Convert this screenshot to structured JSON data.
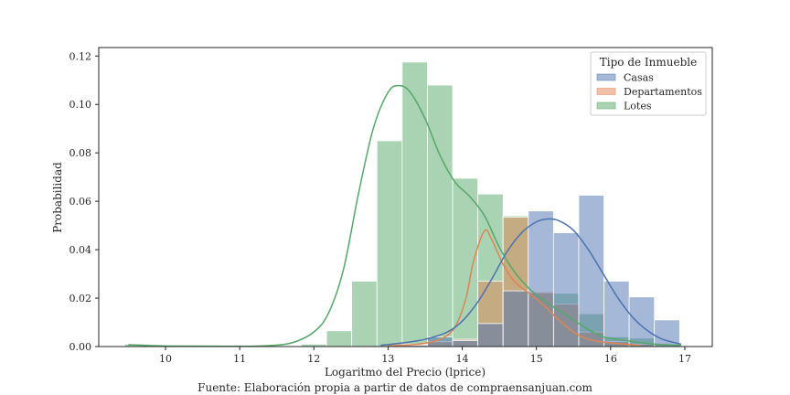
{
  "chart_data": {
    "type": "bar",
    "xlabel": "Logaritmo del Precio (lprice)",
    "ylabel": "Probabilidad",
    "caption": "Fuente: Elaboración propia a partir de datos de compraensanjuan.com",
    "xlim": [
      9.1,
      17.37
    ],
    "ylim": [
      0,
      0.1235
    ],
    "x_ticks": [
      10,
      11,
      12,
      13,
      14,
      15,
      16,
      17
    ],
    "y_ticks": [
      0.0,
      0.02,
      0.04,
      0.06,
      0.08,
      0.1,
      0.12
    ],
    "y_tick_labels": [
      "0.00",
      "0.02",
      "0.04",
      "0.06",
      "0.08",
      "0.10",
      "0.12"
    ],
    "legend": {
      "title": "Tipo de Inmueble",
      "placement": "top-right"
    },
    "bin_edges": [
      9.45,
      9.79,
      10.13,
      10.47,
      10.81,
      11.15,
      11.49,
      11.83,
      12.17,
      12.51,
      12.85,
      13.19,
      13.53,
      13.87,
      14.21,
      14.55,
      14.89,
      15.23,
      15.57,
      15.91,
      16.25,
      16.59,
      16.93
    ],
    "series": [
      {
        "name": "Lotes",
        "color": "#55a868",
        "values": [
          0.001,
          0,
          0,
          0,
          0,
          0,
          0,
          0.001,
          0.0065,
          0.027,
          0.085,
          0.1175,
          0.108,
          0.0695,
          0.063,
          0.054,
          0.022,
          0.022,
          0.0135,
          0.004,
          0.0035,
          0.001
        ],
        "kde": [
          [
            9.5,
            0.0008
          ],
          [
            9.8,
            0.0004
          ],
          [
            10.2,
            0.0002
          ],
          [
            11.0,
            0.0001
          ],
          [
            11.4,
            0.0004
          ],
          [
            11.7,
            0.0015
          ],
          [
            12.0,
            0.006
          ],
          [
            12.2,
            0.014
          ],
          [
            12.4,
            0.032
          ],
          [
            12.6,
            0.063
          ],
          [
            12.8,
            0.09
          ],
          [
            13.0,
            0.105
          ],
          [
            13.15,
            0.1078
          ],
          [
            13.3,
            0.105
          ],
          [
            13.5,
            0.094
          ],
          [
            13.7,
            0.079
          ],
          [
            13.9,
            0.068
          ],
          [
            14.1,
            0.062
          ],
          [
            14.3,
            0.054
          ],
          [
            14.5,
            0.041
          ],
          [
            14.7,
            0.031
          ],
          [
            14.9,
            0.024
          ],
          [
            15.1,
            0.019
          ],
          [
            15.3,
            0.015
          ],
          [
            15.5,
            0.011
          ],
          [
            15.7,
            0.007
          ],
          [
            15.9,
            0.004
          ],
          [
            16.1,
            0.003
          ],
          [
            16.3,
            0.002
          ],
          [
            16.6,
            0.001
          ],
          [
            16.95,
            0.0005
          ]
        ]
      },
      {
        "name": "Departamentos",
        "color": "#dd8452",
        "values": [
          0,
          0,
          0,
          0,
          0,
          0,
          0,
          0,
          0,
          0,
          0,
          0.001,
          0.002,
          0.003,
          0.027,
          0.0535,
          0.0225,
          0.0175,
          0.006,
          0.002,
          0.001,
          0
        ],
        "kde": [
          [
            13.0,
            0.0003
          ],
          [
            13.4,
            0.001
          ],
          [
            13.7,
            0.003
          ],
          [
            13.9,
            0.008
          ],
          [
            14.05,
            0.02
          ],
          [
            14.15,
            0.035
          ],
          [
            14.3,
            0.0478
          ],
          [
            14.4,
            0.044
          ],
          [
            14.55,
            0.034
          ],
          [
            14.7,
            0.027
          ],
          [
            14.9,
            0.022
          ],
          [
            15.1,
            0.017
          ],
          [
            15.3,
            0.011
          ],
          [
            15.5,
            0.006
          ],
          [
            15.7,
            0.003
          ],
          [
            16.0,
            0.0015
          ],
          [
            16.4,
            0.0005
          ]
        ]
      },
      {
        "name": "Casas",
        "color": "#4c72b0",
        "values": [
          0,
          0,
          0,
          0,
          0,
          0,
          0,
          0,
          0,
          0,
          0,
          0.0005,
          0.004,
          0.0025,
          0.0095,
          0.023,
          0.056,
          0.047,
          0.0625,
          0.027,
          0.0205,
          0.011
        ],
        "kde": [
          [
            12.9,
            0.0005
          ],
          [
            13.2,
            0.0015
          ],
          [
            13.5,
            0.003
          ],
          [
            13.8,
            0.006
          ],
          [
            14.0,
            0.0105
          ],
          [
            14.2,
            0.018
          ],
          [
            14.4,
            0.028
          ],
          [
            14.6,
            0.039
          ],
          [
            14.8,
            0.047
          ],
          [
            15.0,
            0.0515
          ],
          [
            15.15,
            0.0527
          ],
          [
            15.3,
            0.052
          ],
          [
            15.5,
            0.048
          ],
          [
            15.7,
            0.04
          ],
          [
            15.9,
            0.03
          ],
          [
            16.1,
            0.02
          ],
          [
            16.3,
            0.012
          ],
          [
            16.5,
            0.0065
          ],
          [
            16.7,
            0.003
          ],
          [
            16.95,
            0.001
          ]
        ]
      }
    ]
  }
}
